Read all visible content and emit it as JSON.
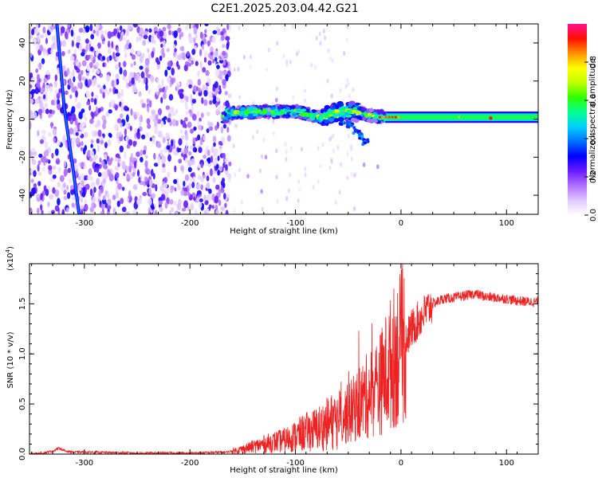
{
  "title": "C2E1.2025.203.04.42.G21",
  "chart_data": [
    {
      "type": "heatmap",
      "xlabel": "Height of straight line (km)",
      "ylabel": "Frequency (Hz)",
      "xlim": [
        -352,
        130
      ],
      "ylim": [
        -50,
        50
      ],
      "xticks": [
        -300,
        -200,
        -100,
        0,
        100
      ],
      "yticks": [
        -40,
        -20,
        0,
        20,
        40
      ],
      "colorbar": {
        "label": "Normalized spectral amplitude",
        "range": [
          0,
          1
        ],
        "ticks": [
          "0.0",
          "0.2",
          "0.4",
          "0.6",
          "0.8"
        ],
        "colors": [
          "#ffffff",
          "#e0c8ff",
          "#b070ff",
          "#6a1bff",
          "#0000ff",
          "#0070ff",
          "#00d0ff",
          "#00ff90",
          "#30ff00",
          "#c0ff00",
          "#ffff00",
          "#ff9000",
          "#ff1000",
          "#ff1090"
        ]
      },
      "features": [
        {
          "name": "scattered noise",
          "x_range": [
            -352,
            -162
          ],
          "amplitude": "0.05-0.3"
        },
        {
          "name": "diagonal streak",
          "x": [
            -326,
            -319,
            -311,
            -305
          ],
          "y": [
            50,
            5,
            -25,
            -50
          ]
        },
        {
          "name": "main band",
          "x": [
            -165,
            -130,
            -100,
            -75,
            -60,
            -45,
            -30,
            -15,
            0,
            30,
            60,
            85,
            130
          ],
          "y": [
            3,
            4,
            4,
            1,
            4,
            4,
            2,
            1,
            1,
            1,
            1,
            1,
            1
          ]
        },
        {
          "name": "lower arc",
          "x": [
            -55,
            -48,
            -42,
            -38,
            -34
          ],
          "y": [
            -2,
            -3,
            -6,
            -9,
            -12
          ]
        },
        {
          "name": "red peak",
          "x": 85,
          "y": 0.5,
          "amplitude": 1.0
        }
      ]
    },
    {
      "type": "line",
      "xlabel": "Height of straight line (km)",
      "ylabel": "SNR (10 * v/v)",
      "y_multiplier": "(x10",
      "y_multiplier_exp": "4",
      "xlim": [
        -352,
        130
      ],
      "ylim": [
        0,
        1.9
      ],
      "xticks": [
        -300,
        -200,
        -100,
        0,
        100
      ],
      "yticks": [
        "0.0",
        "0.5",
        "1.0",
        "1.5"
      ],
      "series": [
        {
          "color": "#ee2222",
          "x": [
            -352,
            -340,
            -330,
            -324,
            -318,
            -310,
            -300,
            -250,
            -200,
            -165,
            -150,
            -130,
            -110,
            -100,
            -90,
            -80,
            -70,
            -60,
            -50,
            -40,
            -30,
            -20,
            -15,
            -10,
            -5,
            0,
            10,
            20,
            30,
            40,
            50,
            60,
            70,
            80,
            90,
            100,
            110,
            120,
            130
          ],
          "y": [
            0.0,
            0.01,
            0.03,
            0.06,
            0.03,
            0.02,
            0.02,
            0.01,
            0.01,
            0.02,
            0.05,
            0.1,
            0.14,
            0.18,
            0.22,
            0.25,
            0.3,
            0.35,
            0.4,
            0.5,
            0.6,
            0.7,
            0.8,
            0.9,
            1.0,
            1.05,
            1.25,
            1.38,
            1.5,
            1.55,
            1.56,
            1.58,
            1.6,
            1.57,
            1.56,
            1.55,
            1.53,
            1.52,
            1.52
          ]
        }
      ]
    }
  ]
}
